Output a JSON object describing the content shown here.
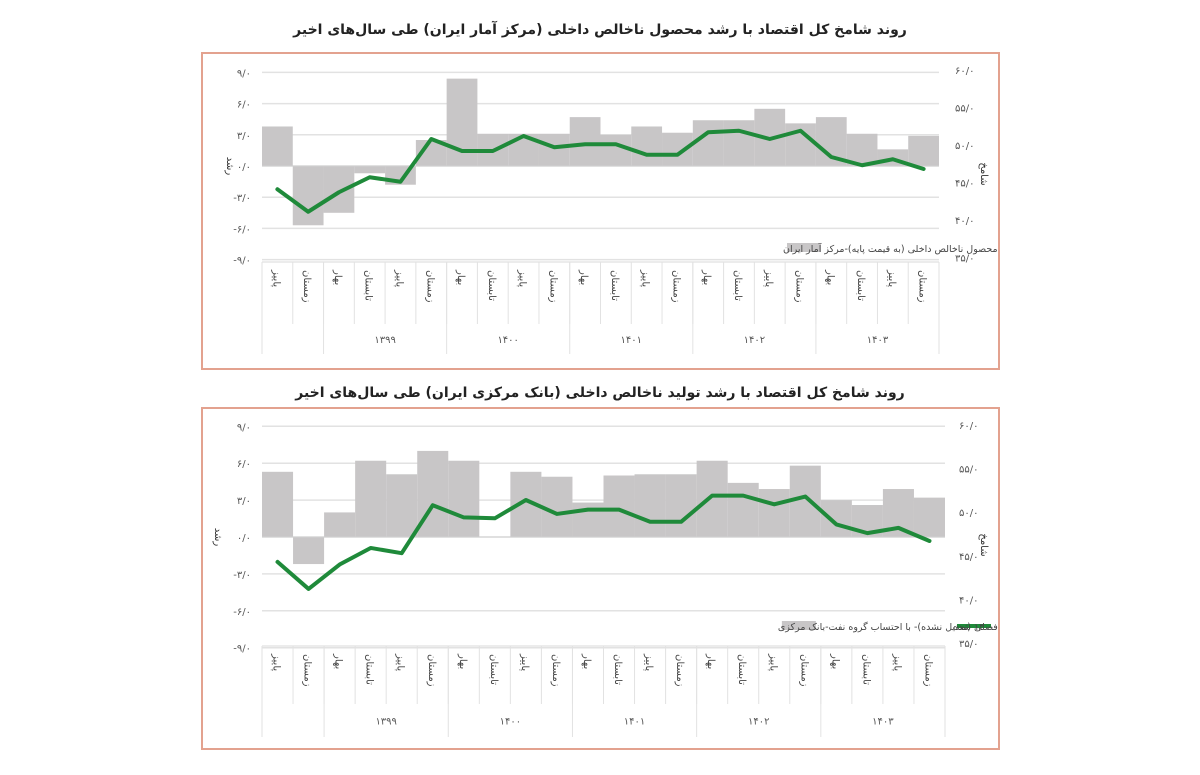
{
  "chart_data": [
    {
      "type": "bar+line",
      "title": "روند شامخ کل اقتصاد با رشد محصول ناخالص داخلی (مرکز آمار ایران) طی سال‌های اخیر",
      "ylabel_left": "رشد",
      "ylabel_right": "شامخ",
      "left_axis": {
        "ticks": [
          9,
          6,
          3,
          0,
          -3,
          -6,
          -9
        ],
        "tick_labels": [
          "۹/۰",
          "۶/۰",
          "۳/۰",
          "۰/۰",
          "-۳/۰",
          "-۶/۰",
          "-۹/۰"
        ],
        "ylim": [
          -9,
          9
        ]
      },
      "right_axis": {
        "ticks": [
          60,
          55,
          50,
          45,
          40,
          35
        ],
        "tick_labels": [
          "۶۰/۰",
          "۵۵/۰",
          "۵۰/۰",
          "۴۵/۰",
          "۴۰/۰",
          "۳۵/۰"
        ],
        "ylim": [
          35,
          60
        ]
      },
      "categories": [
        "پاییز",
        "زمستان",
        "بهار",
        "تابستان",
        "پاییز",
        "زمستان",
        "بهار",
        "تابستان",
        "پاییز",
        "زمستان",
        "بهار",
        "تابستان",
        "پاییز",
        "زمستان",
        "بهار",
        "تابستان",
        "پاییز",
        "زمستان",
        "بهار",
        "تابستان",
        "پاییز",
        "زمستان"
      ],
      "year_groups": [
        {
          "label": "",
          "span": 2
        },
        {
          "label": "۱۳۹۹",
          "span": 4
        },
        {
          "label": "۱۴۰۰",
          "span": 4
        },
        {
          "label": "۱۴۰۱",
          "span": 4
        },
        {
          "label": "۱۴۰۲",
          "span": 4
        },
        {
          "label": "۱۴۰۳",
          "span": 4
        }
      ],
      "series": [
        {
          "name": "رشد محصول ناخالص داخلی (به قیمت پایه)-مرکز آمار ایران",
          "kind": "bar",
          "axis": "left",
          "color": "#c8c6c7",
          "values": [
            3.8,
            -5.7,
            -4.5,
            -0.7,
            -1.8,
            2.5,
            8.4,
            3.1,
            3.1,
            3.1,
            4.7,
            3.0,
            3.8,
            3.2,
            4.4,
            4.4,
            5.5,
            4.1,
            4.7,
            3.1,
            1.6,
            2.9
          ]
        },
        {
          "name": "شامخ کل",
          "kind": "line",
          "axis": "right",
          "color": "#1f8a3a",
          "values": [
            44.1,
            41.1,
            43.7,
            45.7,
            45.1,
            50.8,
            49.2,
            49.2,
            51.2,
            49.7,
            50.1,
            50.1,
            48.7,
            48.7,
            51.7,
            51.9,
            50.8,
            51.9,
            48.4,
            47.3,
            48.1,
            46.8
          ]
        }
      ],
      "legend": [
        {
          "label": "رشد محصول ناخالص داخلی (به قیمت پایه)-مرکز آمار ایران",
          "swatch": "bar",
          "color": "#c8c6c7"
        }
      ],
      "grid": true
    },
    {
      "type": "bar+line",
      "title": "روند شامخ کل اقتصاد با رشد تولید ناخالص داخلی (بانک مرکزی ایران) طی سال‌های اخیر",
      "ylabel_left": "رشد",
      "ylabel_right": "شامخ",
      "left_axis": {
        "ticks": [
          9,
          6,
          3,
          0,
          -3,
          -6,
          -9
        ],
        "tick_labels": [
          "۹/۰",
          "۶/۰",
          "۳/۰",
          "۰/۰",
          "-۳/۰",
          "-۶/۰",
          "-۹/۰"
        ],
        "ylim": [
          -9,
          9
        ]
      },
      "right_axis": {
        "ticks": [
          60,
          55,
          50,
          45,
          40,
          35
        ],
        "tick_labels": [
          "۶۰/۰",
          "۵۵/۰",
          "۵۰/۰",
          "۴۵/۰",
          "۴۰/۰",
          "۳۵/۰"
        ],
        "ylim": [
          35,
          60
        ]
      },
      "categories": [
        "پاییز",
        "زمستان",
        "بهار",
        "تابستان",
        "پاییز",
        "زمستان",
        "بهار",
        "تابستان",
        "پاییز",
        "زمستان",
        "بهار",
        "تابستان",
        "پاییز",
        "زمستان",
        "بهار",
        "تابستان",
        "پاییز",
        "زمستان",
        "بهار",
        "تابستان",
        "پاییز",
        "زمستان"
      ],
      "year_groups": [
        {
          "label": "",
          "span": 2
        },
        {
          "label": "۱۳۹۹",
          "span": 4
        },
        {
          "label": "۱۴۰۰",
          "span": 4
        },
        {
          "label": "۱۴۰۱",
          "span": 4
        },
        {
          "label": "۱۴۰۲",
          "span": 4
        },
        {
          "label": "۱۴۰۳",
          "span": 4
        }
      ],
      "series": [
        {
          "name": "رشد تولید ناخالص داخلی به قیمت ثابت سال ۱۴۰۰ (تعدیل نشده)- با احتساب گروه نفت-بانک مرکزی",
          "kind": "bar",
          "axis": "left",
          "color": "#c8c6c7",
          "values": [
            5.3,
            -2.2,
            2.0,
            6.2,
            5.1,
            7.0,
            6.2,
            0.0,
            5.3,
            4.9,
            2.8,
            5.0,
            5.1,
            5.1,
            6.2,
            4.4,
            3.9,
            5.8,
            3.0,
            2.6,
            3.9,
            3.2
          ]
        },
        {
          "name": "شامخ کل- تعدیل فصلی شده",
          "kind": "line",
          "axis": "right",
          "color": "#1f8a3a",
          "values": [
            44.3,
            41.2,
            44.0,
            45.9,
            45.3,
            50.8,
            49.4,
            49.3,
            51.4,
            49.8,
            50.3,
            50.3,
            48.9,
            48.9,
            51.9,
            51.9,
            50.9,
            51.8,
            48.6,
            47.6,
            48.2,
            46.7
          ]
        }
      ],
      "legend": [
        {
          "label": "شامخ کل- تعدیل فصلی شده",
          "swatch": "line",
          "color": "#1f8a3a"
        },
        {
          "label": "رشد تولید ناخالص داخلی به قیمت ثابت سال ۱۴۰۰ (تعدیل نشده)- با احتساب گروه نفت-بانک مرکزی",
          "swatch": "bar",
          "color": "#c8c6c7"
        }
      ],
      "grid": true
    }
  ],
  "colors": {
    "frame_border": "#e3a28f",
    "bar": "#c8c6c7",
    "line": "#1f8a3a",
    "grid": "#e2e2e2",
    "axis_text": "#555555"
  }
}
